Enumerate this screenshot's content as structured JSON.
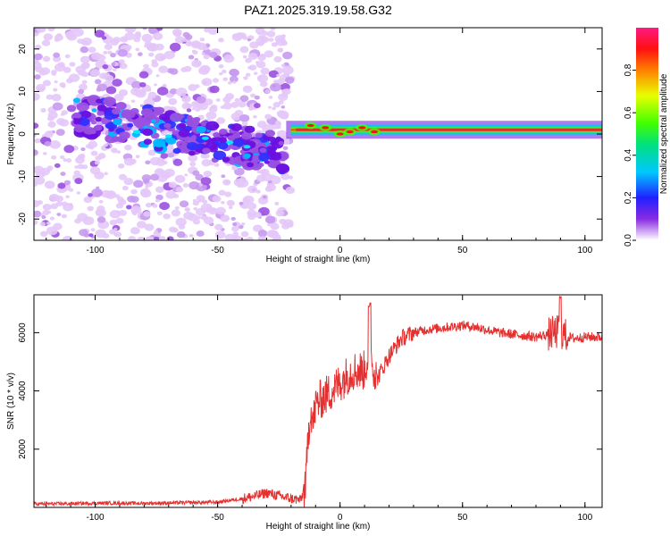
{
  "title": "PAZ1.2025.319.19.58.G32",
  "colors": {
    "snr_line": "#e53030",
    "band_core": "#e8282a",
    "axis": "#000000"
  },
  "chart_data": [
    {
      "type": "heatmap",
      "name": "spectrogram",
      "xlabel": "Height of straight line (km)",
      "ylabel": "Frequency (Hz)",
      "xlim": [
        -125,
        107
      ],
      "ylim": [
        -25,
        25
      ],
      "xticks": [
        -100,
        -50,
        0,
        50,
        100
      ],
      "yticks": [
        -20,
        -10,
        0,
        10,
        20
      ],
      "colorbar": {
        "label": "Normalized spectral amplitude",
        "range": [
          0,
          1
        ],
        "ticks": [
          "0.0",
          "0.2",
          "0.4",
          "0.6",
          "0.8"
        ],
        "tick_values": [
          0.0,
          0.2,
          0.4,
          0.6,
          0.8
        ]
      },
      "description_segments": [
        {
          "x_range": [
            -125,
            -20
          ],
          "frequency_spread_hz": [
            -25,
            25
          ],
          "amplitude": "low"
        },
        {
          "x_range": [
            -105,
            -25
          ],
          "frequency_center_hz": [
            5,
            -5
          ],
          "amplitude": "moderate"
        },
        {
          "x_range": [
            -20,
            107
          ],
          "frequency_center_hz": 1,
          "amplitude": "high"
        }
      ]
    },
    {
      "type": "line",
      "name": "snr",
      "xlabel": "Height of straight line (km)",
      "ylabel": "SNR (10 * v/v)",
      "xlim": [
        -125,
        107
      ],
      "ylim": [
        0,
        7300
      ],
      "xticks": [
        -100,
        -50,
        0,
        50,
        100
      ],
      "yticks": [
        2000,
        4000,
        6000
      ],
      "series": [
        {
          "name": "SNR",
          "x": [
            -125,
            -110,
            -95,
            -80,
            -65,
            -50,
            -40,
            -35,
            -30,
            -25,
            -20,
            -16,
            -14,
            -13,
            -12,
            -11,
            -10,
            -8,
            -5,
            -2,
            0,
            5,
            10,
            12,
            15,
            20,
            25,
            30,
            35,
            40,
            45,
            50,
            55,
            60,
            65,
            70,
            75,
            80,
            85,
            88,
            90,
            92,
            95,
            100,
            107
          ],
          "y": [
            120,
            130,
            150,
            140,
            160,
            180,
            300,
            380,
            500,
            400,
            300,
            250,
            800,
            2500,
            3400,
            2900,
            3500,
            3700,
            3900,
            4100,
            4300,
            4700,
            4700,
            5400,
            4400,
            5200,
            5800,
            6000,
            6100,
            6150,
            6200,
            6250,
            6200,
            6100,
            6000,
            5950,
            5900,
            5850,
            5950,
            6000,
            6050,
            5900,
            5800,
            5850,
            5850
          ]
        }
      ]
    }
  ]
}
